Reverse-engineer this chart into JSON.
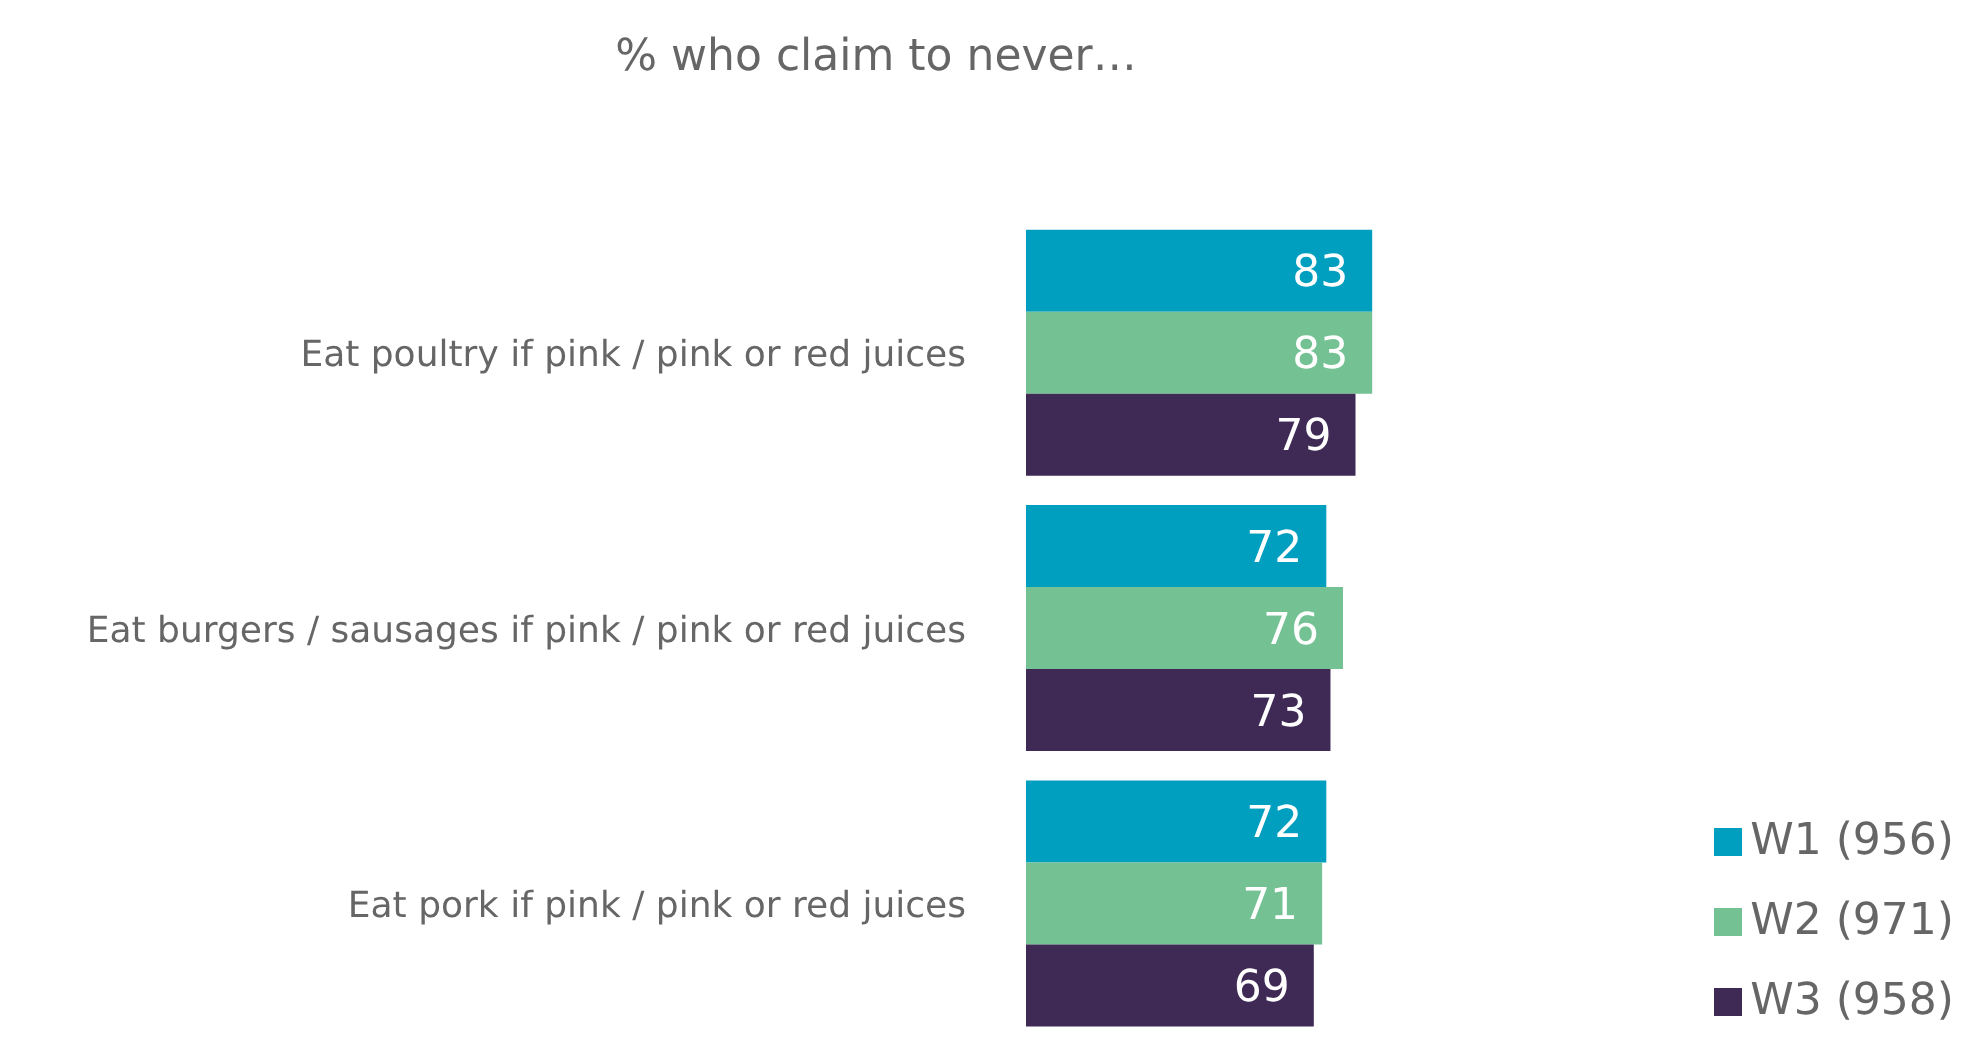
{
  "chart_data": {
    "type": "bar",
    "orientation": "horizontal",
    "title": "% who claim to never…",
    "categories": [
      "Eat poultry if pink / pink or red juices",
      "Eat burgers / sausages if pink / pink or red juices",
      "Eat pork if pink / pink or red juices"
    ],
    "series": [
      {
        "name": "W1 (956)",
        "color": "#009ebf",
        "values": [
          83,
          72,
          72
        ]
      },
      {
        "name": "W2 (971)",
        "color": "#74c194",
        "values": [
          83,
          76,
          71
        ]
      },
      {
        "name": "W3 (958)",
        "color": "#3e2a55",
        "values": [
          79,
          73,
          69
        ]
      }
    ],
    "data_labels": true,
    "legend": "bottom right",
    "grid": false
  }
}
